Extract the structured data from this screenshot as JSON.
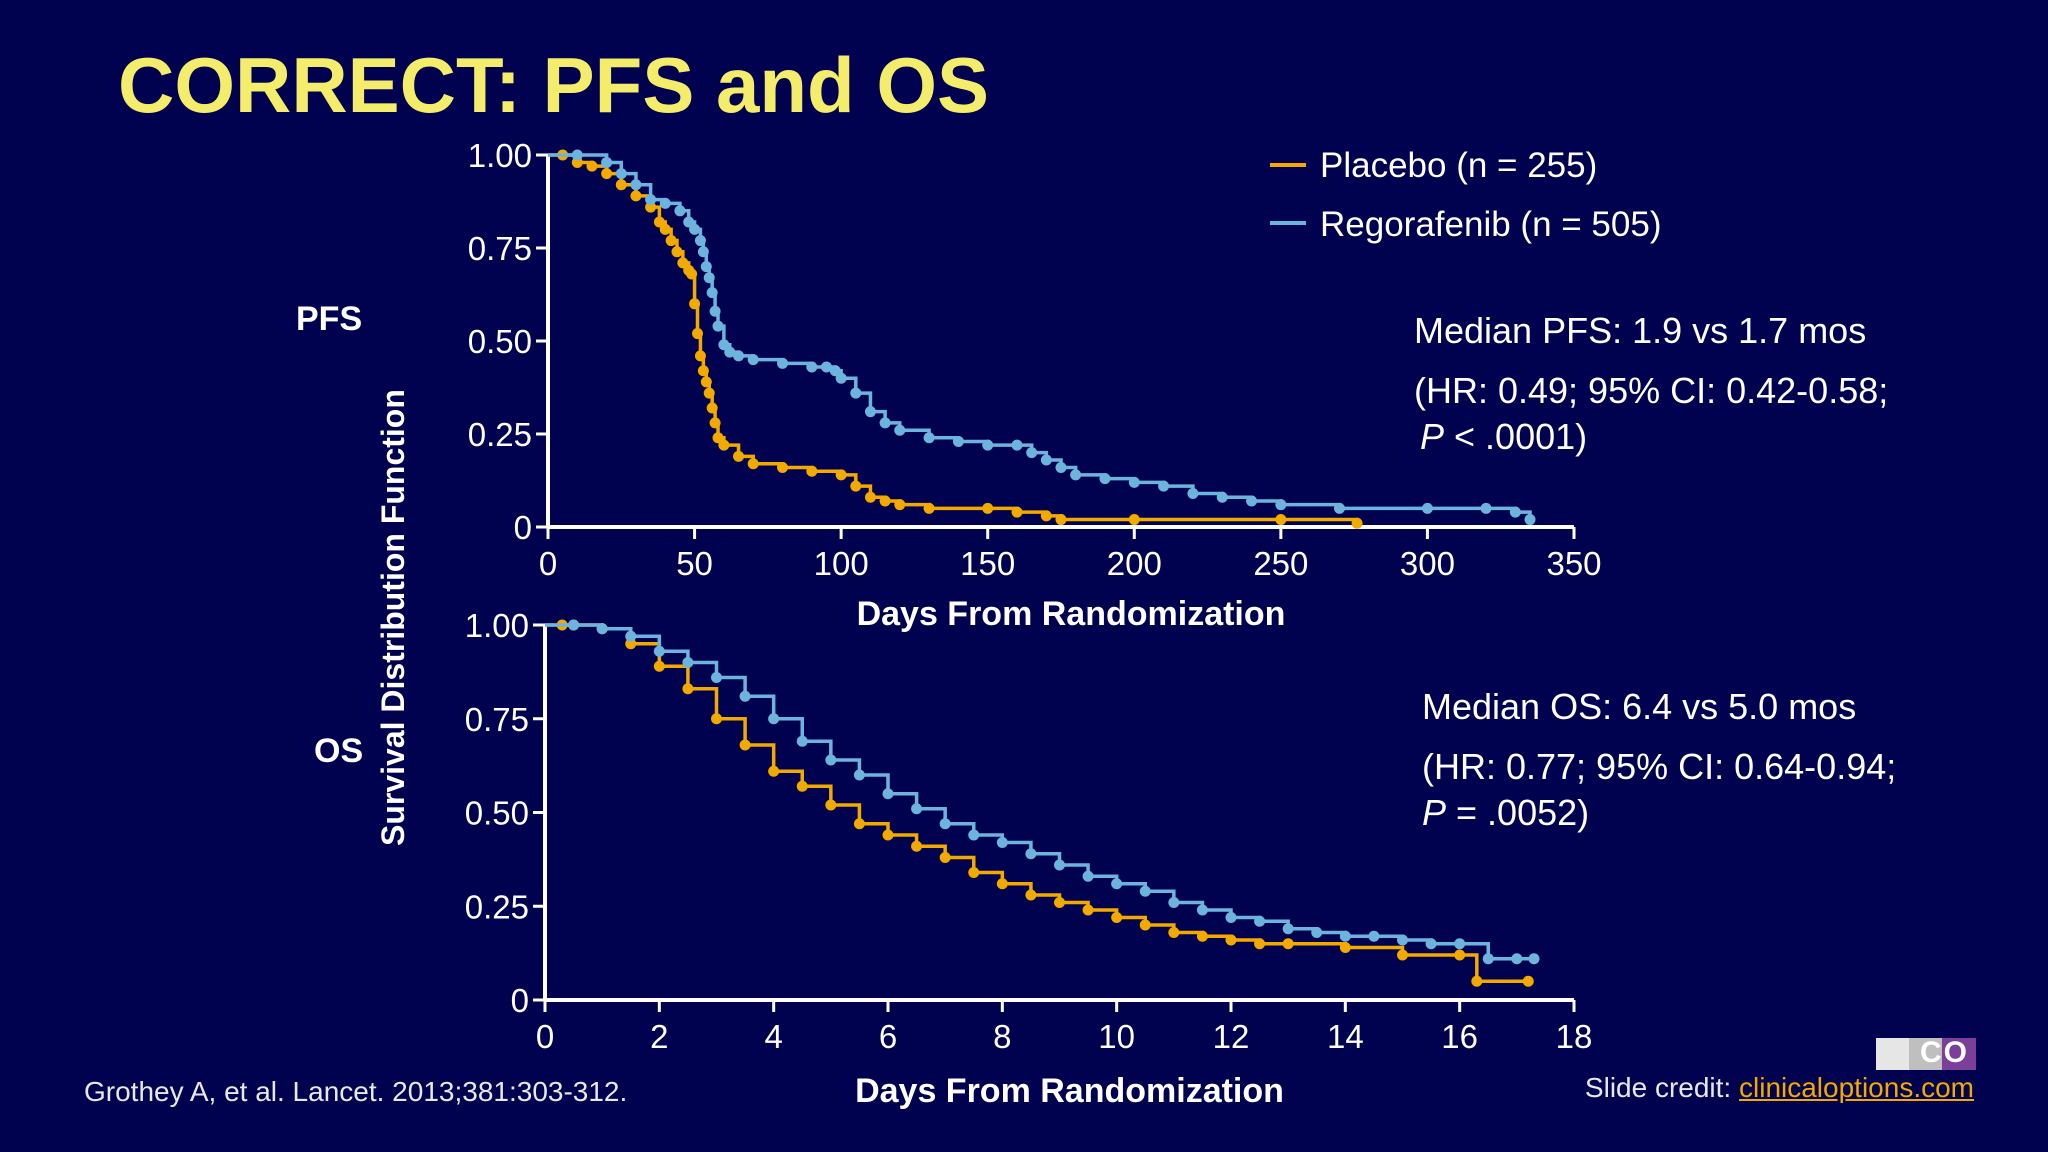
{
  "title": "CORRECT: PFS and OS",
  "shared_ylabel": "Survival Distribution Function",
  "colors": {
    "placebo": "#f2a900",
    "regorafenib": "#6cb4de",
    "title": "#f4ec6b",
    "background": "#01024f"
  },
  "legend": {
    "placebo": "Placebo (n = 255)",
    "regorafenib": "Regorafenib (n = 505)"
  },
  "pfs": {
    "side_label": "PFS",
    "xlabel": "Days From Randomization",
    "stat_line1": "Median PFS: 1.9 vs 1.7 mos",
    "stat_line2": "(HR: 0.49; 95% CI: 0.42-0.58;",
    "stat_p_letter": "P",
    "stat_p_value": " < .0001)"
  },
  "os": {
    "side_label": "OS",
    "xlabel": "Days From Randomization",
    "stat_line1": "Median OS: 6.4 vs 5.0 mos",
    "stat_line2": "(HR: 0.77; 95% CI: 0.64-0.94;",
    "stat_p_letter": "P",
    "stat_p_value": " = .0052)"
  },
  "citation": "Grothey A, et al. Lancet. 2013;381:303-312.",
  "credit_label": "Slide credit: ",
  "credit_link": "clinicaloptions.com",
  "logo_text": "CO",
  "chart_data": [
    {
      "type": "line",
      "name": "PFS",
      "xlabel": "Days From Randomization",
      "ylabel": "Survival Distribution Function",
      "xlim": [
        0,
        350
      ],
      "ylim": [
        0,
        1
      ],
      "xticks": [
        0,
        50,
        100,
        150,
        200,
        250,
        300,
        350
      ],
      "xtick_labels": [
        "0",
        "50",
        "100",
        "150",
        "200",
        "250",
        "300",
        "350"
      ],
      "yticks": [
        0,
        0.25,
        0.5,
        0.75,
        1
      ],
      "ytick_labels": [
        "0",
        "0.25",
        "0.50",
        "0.75",
        "1.00"
      ],
      "legend_position": "top-right",
      "series": [
        {
          "name": "Placebo (n = 255)",
          "color": "#f2a900",
          "x": [
            0,
            5,
            10,
            15,
            20,
            25,
            30,
            35,
            38,
            40,
            42,
            44,
            46,
            48,
            49,
            50,
            51,
            52,
            53,
            54,
            55,
            56,
            57,
            58,
            60,
            65,
            70,
            80,
            90,
            100,
            105,
            110,
            115,
            120,
            130,
            150,
            160,
            170,
            175,
            200,
            250,
            276
          ],
          "y": [
            1.0,
            1.0,
            0.98,
            0.97,
            0.95,
            0.92,
            0.89,
            0.86,
            0.82,
            0.8,
            0.77,
            0.74,
            0.71,
            0.69,
            0.68,
            0.6,
            0.52,
            0.46,
            0.42,
            0.39,
            0.36,
            0.32,
            0.28,
            0.24,
            0.22,
            0.19,
            0.17,
            0.16,
            0.15,
            0.14,
            0.11,
            0.08,
            0.07,
            0.06,
            0.05,
            0.05,
            0.04,
            0.03,
            0.02,
            0.02,
            0.02,
            0.01
          ]
        },
        {
          "name": "Regorafenib (n = 505)",
          "color": "#6cb4de",
          "x": [
            0,
            10,
            20,
            25,
            30,
            35,
            40,
            45,
            48,
            50,
            52,
            53,
            54,
            55,
            56,
            57,
            58,
            60,
            62,
            65,
            70,
            80,
            90,
            95,
            98,
            100,
            105,
            110,
            115,
            120,
            130,
            140,
            150,
            160,
            165,
            170,
            175,
            180,
            190,
            200,
            210,
            220,
            230,
            240,
            250,
            270,
            300,
            320,
            330,
            335
          ],
          "y": [
            1.0,
            1.0,
            0.98,
            0.95,
            0.92,
            0.88,
            0.87,
            0.85,
            0.82,
            0.8,
            0.77,
            0.74,
            0.7,
            0.67,
            0.63,
            0.58,
            0.54,
            0.49,
            0.47,
            0.46,
            0.45,
            0.44,
            0.43,
            0.43,
            0.42,
            0.4,
            0.36,
            0.31,
            0.28,
            0.26,
            0.24,
            0.23,
            0.22,
            0.22,
            0.2,
            0.18,
            0.16,
            0.14,
            0.13,
            0.12,
            0.11,
            0.09,
            0.08,
            0.07,
            0.06,
            0.05,
            0.05,
            0.05,
            0.04,
            0.02
          ]
        }
      ]
    },
    {
      "type": "line",
      "name": "OS",
      "xlabel": "Days From Randomization",
      "ylabel": "Survival Distribution Function",
      "xlim": [
        0,
        18
      ],
      "ylim": [
        0,
        1
      ],
      "xticks": [
        0,
        2,
        4,
        6,
        8,
        10,
        12,
        14,
        16,
        18
      ],
      "xtick_labels": [
        "0",
        "2",
        "4",
        "6",
        "8",
        "10",
        "12",
        "14",
        "16",
        "18"
      ],
      "yticks": [
        0,
        0.25,
        0.5,
        0.75,
        1
      ],
      "ytick_labels": [
        "0",
        "0.25",
        "0.50",
        "0.75",
        "1.00"
      ],
      "series": [
        {
          "name": "Placebo (n = 255)",
          "color": "#f2a900",
          "x": [
            0,
            0.3,
            0.5,
            1.0,
            1.5,
            2.0,
            2.5,
            3.0,
            3.5,
            4.0,
            4.5,
            5.0,
            5.5,
            6.0,
            6.5,
            7.0,
            7.5,
            8.0,
            8.5,
            9.0,
            9.5,
            10.0,
            10.5,
            11.0,
            11.5,
            12.0,
            12.5,
            13.0,
            14.0,
            15.0,
            16.0,
            16.3,
            17.2
          ],
          "y": [
            1.0,
            1.0,
            1.0,
            0.99,
            0.95,
            0.89,
            0.83,
            0.75,
            0.68,
            0.61,
            0.57,
            0.52,
            0.47,
            0.44,
            0.41,
            0.38,
            0.34,
            0.31,
            0.28,
            0.26,
            0.24,
            0.22,
            0.2,
            0.18,
            0.17,
            0.16,
            0.15,
            0.15,
            0.14,
            0.12,
            0.12,
            0.05,
            0.05
          ]
        },
        {
          "name": "Regorafenib (n = 505)",
          "color": "#6cb4de",
          "x": [
            0,
            0.5,
            1.0,
            1.5,
            2.0,
            2.5,
            3.0,
            3.5,
            4.0,
            4.5,
            5.0,
            5.5,
            6.0,
            6.5,
            7.0,
            7.5,
            8.0,
            8.5,
            9.0,
            9.5,
            10.0,
            10.5,
            11.0,
            11.5,
            12.0,
            12.5,
            13.0,
            13.5,
            14.0,
            14.5,
            15.0,
            15.5,
            16.0,
            16.5,
            17.0,
            17.3
          ],
          "y": [
            1.0,
            1.0,
            0.99,
            0.97,
            0.93,
            0.9,
            0.86,
            0.81,
            0.75,
            0.69,
            0.64,
            0.6,
            0.55,
            0.51,
            0.47,
            0.44,
            0.42,
            0.39,
            0.36,
            0.33,
            0.31,
            0.29,
            0.26,
            0.24,
            0.22,
            0.21,
            0.19,
            0.18,
            0.17,
            0.17,
            0.16,
            0.15,
            0.15,
            0.11,
            0.11,
            0.11
          ]
        }
      ]
    }
  ]
}
